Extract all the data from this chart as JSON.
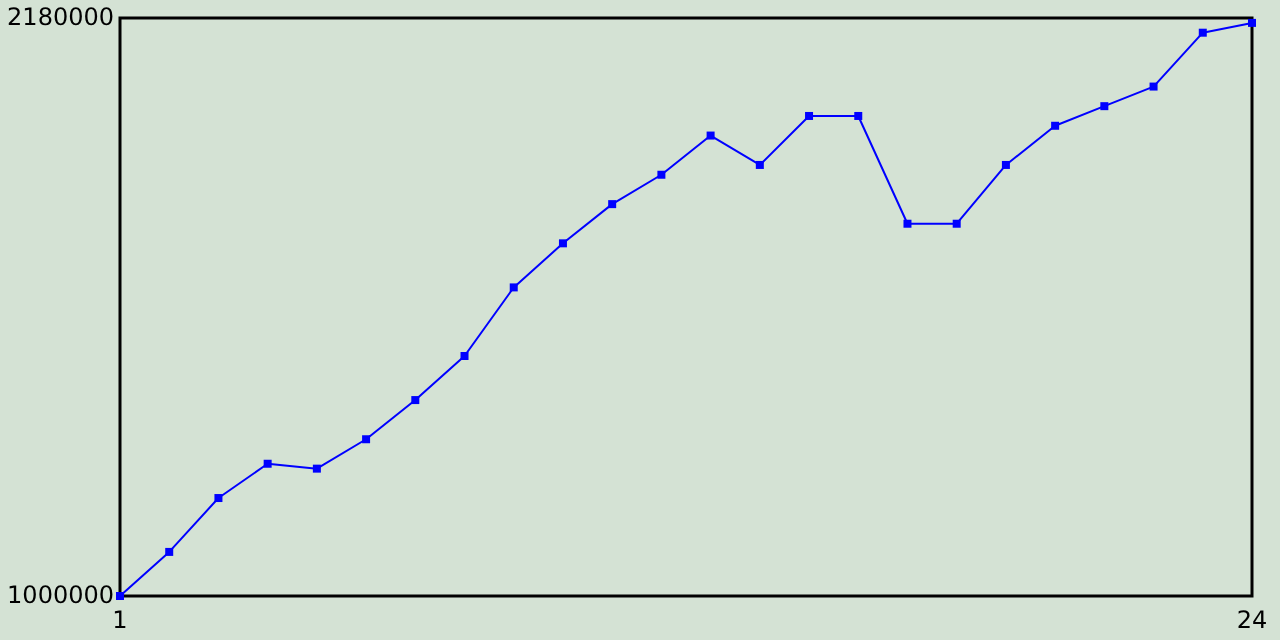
{
  "chart_data": {
    "type": "line",
    "x": [
      1,
      2,
      3,
      4,
      5,
      6,
      7,
      8,
      9,
      10,
      11,
      12,
      13,
      14,
      15,
      16,
      17,
      18,
      19,
      20,
      21,
      22,
      23,
      24
    ],
    "series": [
      {
        "color": "#0000ff",
        "values": [
          1000000,
          1090000,
          1200000,
          1270000,
          1260000,
          1320000,
          1400000,
          1490000,
          1630000,
          1720000,
          1800000,
          1860000,
          1940000,
          1880000,
          1980000,
          1980000,
          1760000,
          1760000,
          1880000,
          1960000,
          2000000,
          2040000,
          2150000,
          2170000
        ]
      }
    ],
    "xlim": [
      1,
      24
    ],
    "xticks": [
      1,
      24
    ],
    "ylim": [
      1000000,
      2180000
    ],
    "yticks": [
      1000000,
      2180000
    ],
    "grid": false,
    "marker": "square",
    "line_style": "solid"
  }
}
